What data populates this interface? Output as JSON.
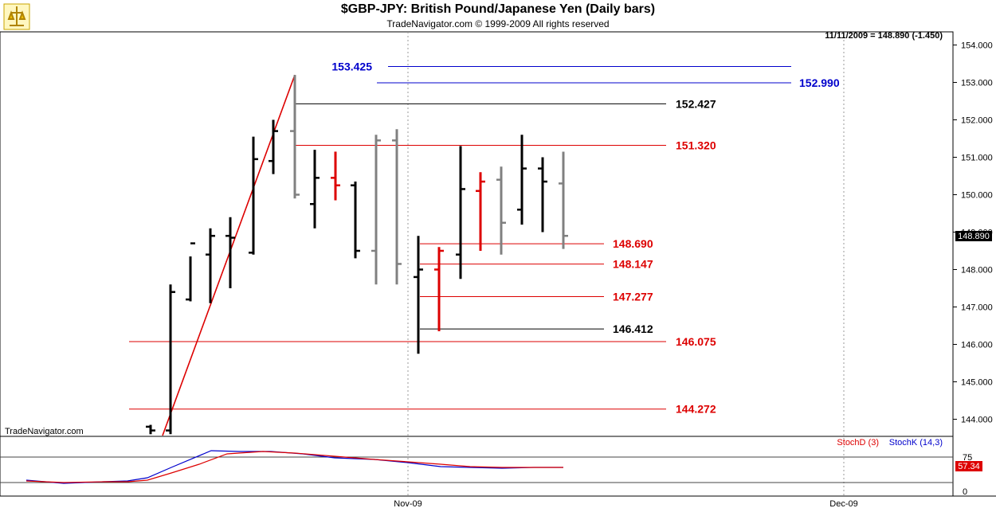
{
  "header": {
    "title": "$GBP-JPY:  British Pound/Japanese Yen  (Daily bars)",
    "subtitle": "TradeNavigator.com © 1999-2009 All rights reserved",
    "quote": "11/11/2009 = 148.890 (-1.450)",
    "watermark": "TradeNavigator.com"
  },
  "price_tag": "148.890",
  "stoch": {
    "stochd_label": "StochD (3)",
    "stochk_label": "StochK (14,3)",
    "value_tag": "57.34",
    "ticks": [
      "75",
      "0"
    ]
  },
  "x_labels": [
    "Nov-09",
    "Dec-09"
  ],
  "colors": {
    "red": "#dd0000",
    "blue": "#0000cc",
    "black": "#000000",
    "gray": "#808080"
  },
  "chart_data": {
    "type": "ohlc",
    "title": "$GBP-JPY:  British Pound/Japanese Yen  (Daily bars)",
    "y_ticks": [
      "154.000",
      "153.000",
      "152.000",
      "151.000",
      "150.000",
      "149.000",
      "148.000",
      "147.000",
      "146.000",
      "145.000",
      "144.000"
    ],
    "ylim": [
      143.7,
      154.2
    ],
    "bars": [
      {
        "c": "black",
        "h": 143.85,
        "l": 143.6,
        "o": 143.8,
        "cl": 143.7
      },
      {
        "c": "black",
        "h": 147.6,
        "l": 143.6,
        "o": 143.7,
        "cl": 147.4
      },
      {
        "c": "black",
        "h": 148.35,
        "l": 147.15,
        "o": 147.2,
        "cl": 148.7
      },
      {
        "c": "black",
        "h": 149.1,
        "l": 147.1,
        "o": 148.4,
        "cl": 148.9
      },
      {
        "c": "black",
        "h": 149.4,
        "l": 147.5,
        "o": 148.9,
        "cl": 148.85
      },
      {
        "c": "black",
        "h": 151.55,
        "l": 148.4,
        "o": 148.45,
        "cl": 150.95
      },
      {
        "c": "black",
        "h": 152.0,
        "l": 150.55,
        "o": 150.9,
        "cl": 151.7
      },
      {
        "c": "gray",
        "h": 153.2,
        "l": 149.9,
        "o": 151.7,
        "cl": 150.0
      },
      {
        "c": "black",
        "h": 151.2,
        "l": 149.1,
        "o": 149.75,
        "cl": 150.45
      },
      {
        "c": "red",
        "h": 151.15,
        "l": 149.85,
        "o": 150.45,
        "cl": 150.25
      },
      {
        "c": "black",
        "h": 150.35,
        "l": 148.3,
        "o": 150.25,
        "cl": 148.5
      },
      {
        "c": "gray",
        "h": 151.6,
        "l": 147.6,
        "o": 148.5,
        "cl": 151.45
      },
      {
        "c": "gray",
        "h": 151.75,
        "l": 147.6,
        "o": 151.45,
        "cl": 148.15
      },
      {
        "c": "black",
        "h": 148.9,
        "l": 145.75,
        "o": 147.8,
        "cl": 148.0
      },
      {
        "c": "red",
        "h": 148.6,
        "l": 146.35,
        "o": 148.0,
        "cl": 148.5
      },
      {
        "c": "black",
        "h": 151.3,
        "l": 147.75,
        "o": 148.4,
        "cl": 150.15
      },
      {
        "c": "red",
        "h": 150.6,
        "l": 148.5,
        "o": 150.1,
        "cl": 150.35
      },
      {
        "c": "gray",
        "h": 150.75,
        "l": 148.4,
        "o": 150.4,
        "cl": 149.25
      },
      {
        "c": "black",
        "h": 151.6,
        "l": 149.2,
        "o": 149.6,
        "cl": 150.7
      },
      {
        "c": "black",
        "h": 151.0,
        "l": 149.0,
        "o": 150.7,
        "cl": 150.35
      },
      {
        "c": "gray",
        "h": 151.15,
        "l": 148.55,
        "o": 150.3,
        "cl": 148.9
      }
    ],
    "levels": [
      {
        "label": "153.425",
        "value": 153.425,
        "color": "blue",
        "side": "left"
      },
      {
        "label": "152.990",
        "value": 152.99,
        "color": "blue",
        "side": "right"
      },
      {
        "label": "152.427",
        "value": 152.427,
        "color": "black",
        "side": "right"
      },
      {
        "label": "151.320",
        "value": 151.32,
        "color": "red",
        "side": "right"
      },
      {
        "label": "148.690",
        "value": 148.69,
        "color": "red",
        "side": "right"
      },
      {
        "label": "148.147",
        "value": 148.147,
        "color": "red",
        "side": "right"
      },
      {
        "label": "147.277",
        "value": 147.277,
        "color": "red",
        "side": "right"
      },
      {
        "label": "146.412",
        "value": 146.412,
        "color": "black",
        "side": "right"
      },
      {
        "label": "146.075",
        "value": 146.075,
        "color": "red",
        "side": "right"
      },
      {
        "label": "144.272",
        "value": 144.272,
        "color": "red",
        "side": "right"
      }
    ],
    "trendline": {
      "from": 143.6,
      "to": 153.2,
      "color": "red"
    }
  }
}
